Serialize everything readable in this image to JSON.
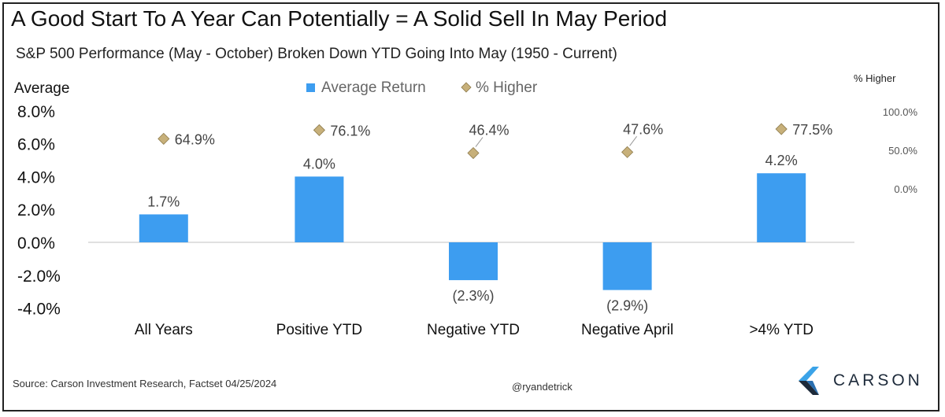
{
  "title": "A Good Start To A Year Can Potentially = A Solid Sell In May Period",
  "subtitle": "S&P 500 Performance (May - October) Broken Down YTD Going Into May (1950 - Current)",
  "source": "Source: Carson Investment Research, Factset 04/25/2024",
  "handle": "@ryandetrick",
  "logo": {
    "text": "CARSON",
    "colors": [
      "#3ba3e8",
      "#1d2a3a"
    ]
  },
  "chart_data": {
    "type": "bar",
    "categories": [
      "All Years",
      "Positive YTD",
      "Negative YTD",
      "Negative April",
      ">4% YTD"
    ],
    "series": [
      {
        "name": "Average Return",
        "axis": "left",
        "color": "#3d9df0",
        "values": [
          1.7,
          4.0,
          -2.3,
          -2.9,
          4.2
        ],
        "labels": [
          "1.7%",
          "4.0%",
          "(2.3%)",
          "(2.9%)",
          "4.2%"
        ]
      },
      {
        "name": "% Higher",
        "axis": "right",
        "type": "scatter",
        "marker": "diamond",
        "color": "#c7b07a",
        "values": [
          64.9,
          76.1,
          46.4,
          47.6,
          77.5
        ],
        "labels": [
          "64.9%",
          "76.1%",
          "46.4%",
          "47.6%",
          "77.5%"
        ]
      }
    ],
    "y_left": {
      "label": "Average",
      "ticks": [
        "8.0%",
        "6.0%",
        "4.0%",
        "2.0%",
        "0.0%",
        "-2.0%",
        "-4.0%"
      ],
      "tick_values": [
        8,
        6,
        4,
        2,
        0,
        -2,
        -4
      ],
      "range": [
        -4,
        8
      ]
    },
    "y_right": {
      "label": "% Higher",
      "ticks": [
        "100.0%",
        "50.0%",
        "0.0%"
      ],
      "tick_values": [
        100,
        50,
        0
      ],
      "range": [
        -100,
        180
      ]
    },
    "legend": {
      "position": "top-center",
      "entries": [
        "Average Return",
        "% Higher"
      ]
    },
    "grid": false
  }
}
